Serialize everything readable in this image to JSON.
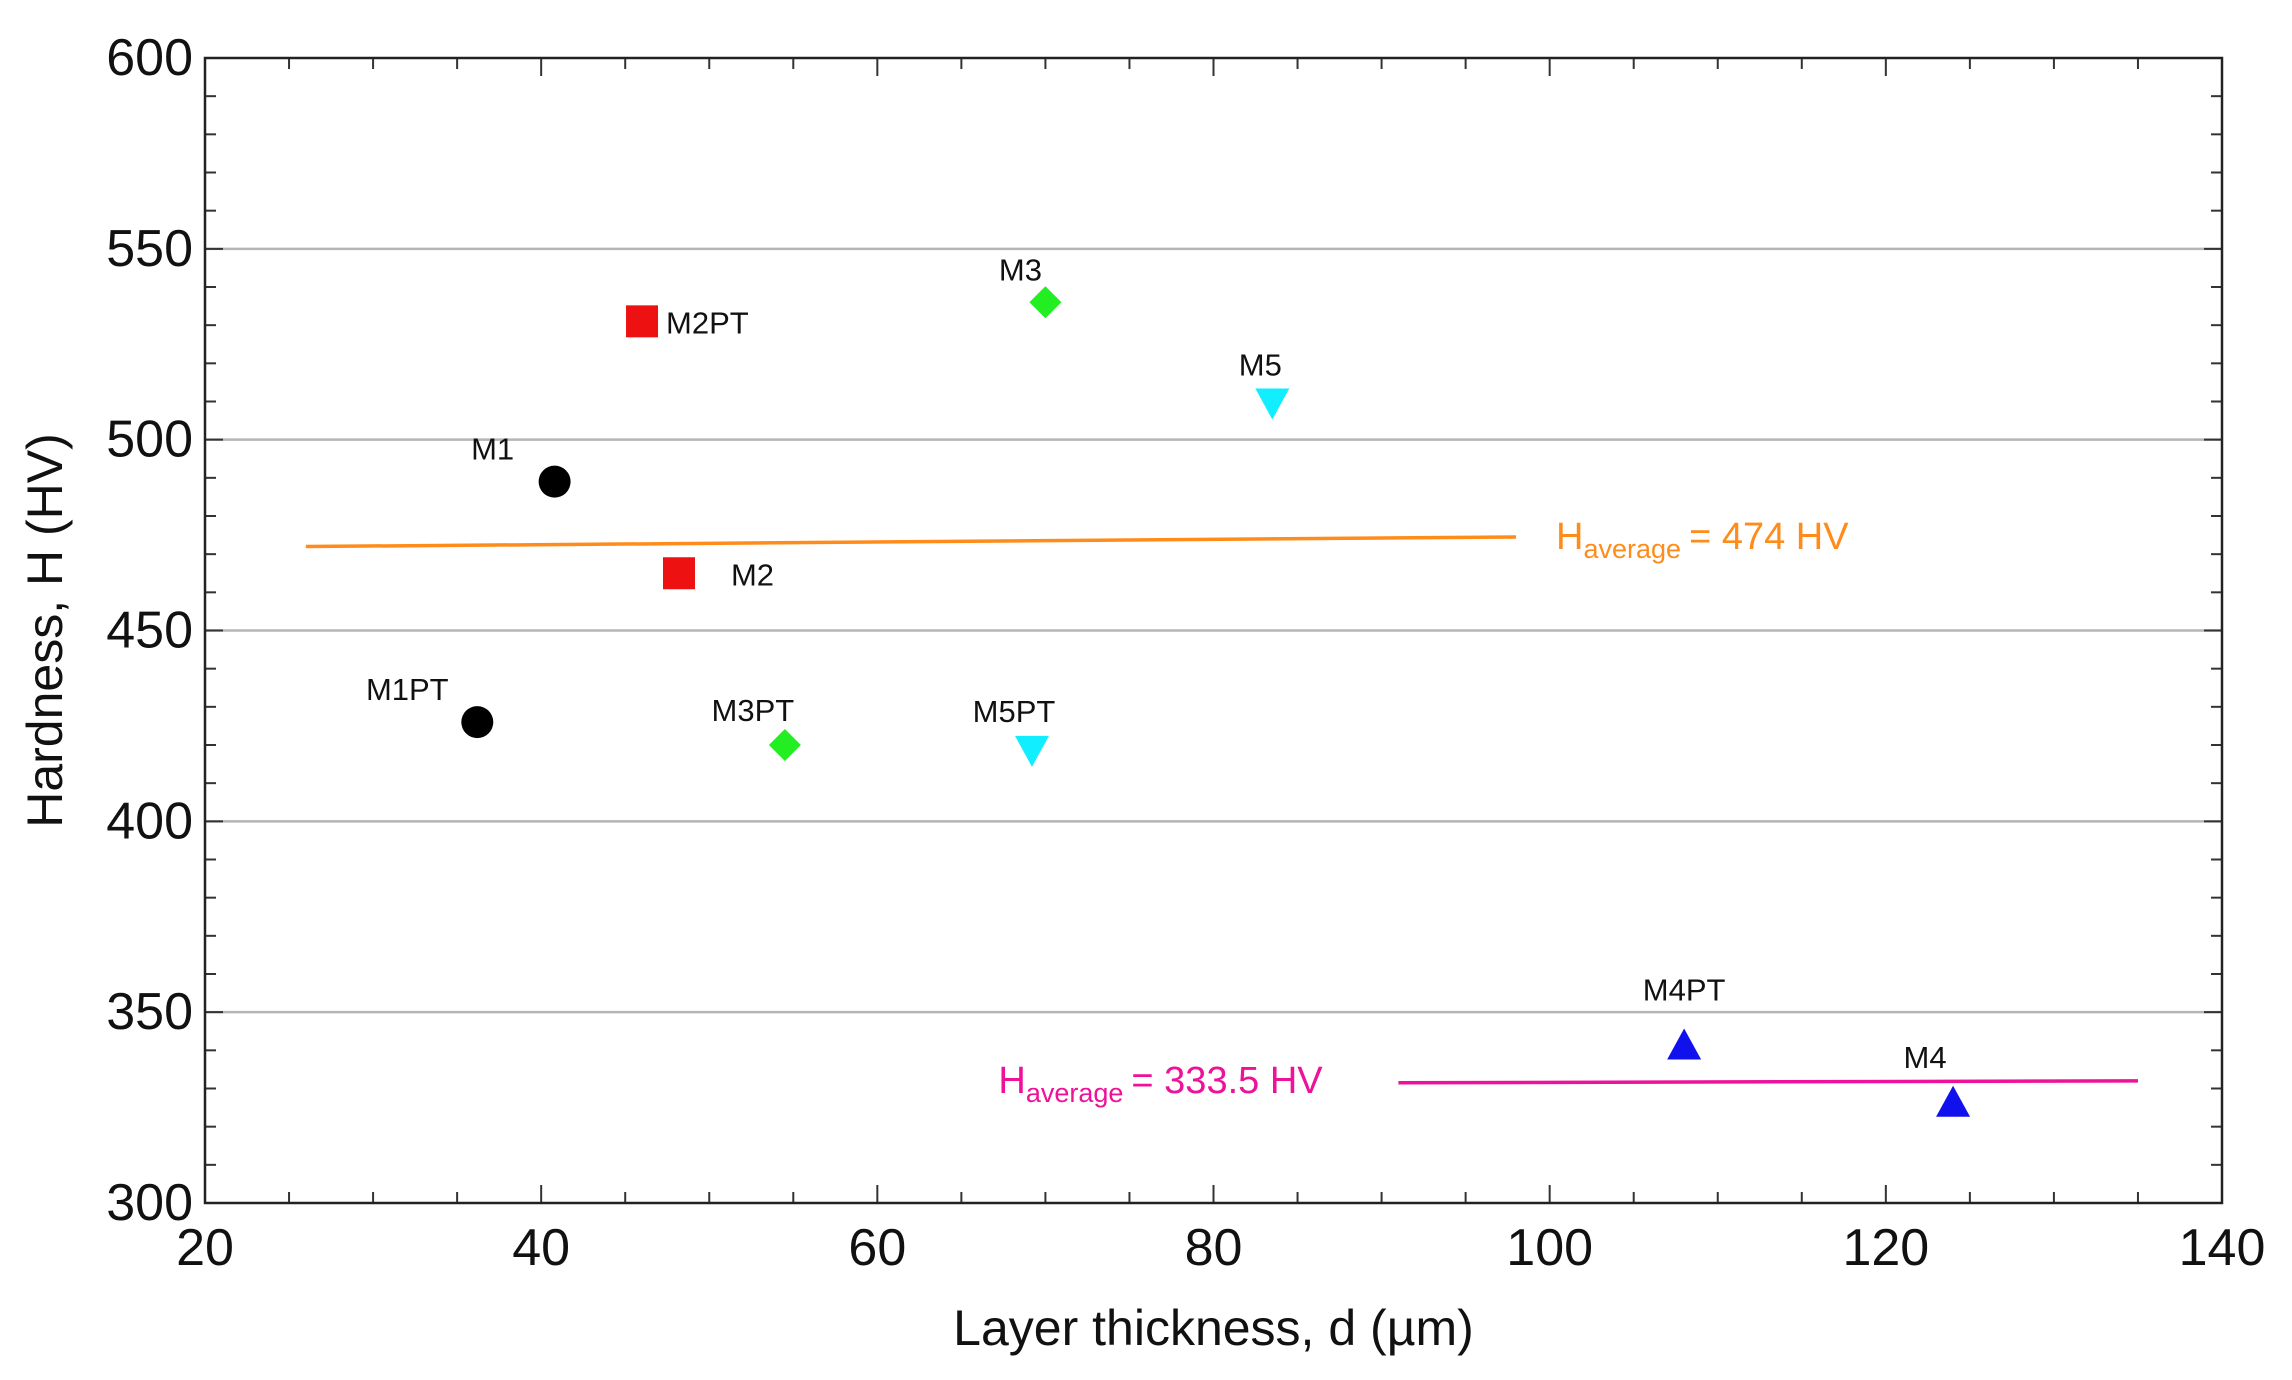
{
  "chart_data": {
    "type": "scatter",
    "title": "",
    "xlabel": "Layer thickness, d (µm)",
    "ylabel": "Hardness, H (HV)",
    "xlim": [
      20,
      140
    ],
    "ylim": [
      300,
      600
    ],
    "x_ticks": [
      20,
      40,
      60,
      80,
      100,
      120,
      140
    ],
    "y_ticks": [
      300,
      350,
      400,
      450,
      500,
      550,
      600
    ],
    "grid": "horizontal",
    "series": [
      {
        "name": "M1",
        "marker": "circle",
        "color": "#000000",
        "label": "M1",
        "x": 40.8,
        "y": 489
      },
      {
        "name": "M1PT",
        "marker": "circle",
        "color": "#000000",
        "label": "M1PT",
        "x": 36.2,
        "y": 426
      },
      {
        "name": "M2",
        "marker": "square",
        "color": "#ee1111",
        "label": "M2",
        "x": 48.2,
        "y": 465
      },
      {
        "name": "M2PT",
        "marker": "square",
        "color": "#ee1111",
        "label": "M2PT",
        "x": 46.0,
        "y": 531
      },
      {
        "name": "M3",
        "marker": "diamond",
        "color": "#22ee22",
        "label": "M3",
        "x": 70.0,
        "y": 536
      },
      {
        "name": "M3PT",
        "marker": "diamond",
        "color": "#22ee22",
        "label": "M3PT",
        "x": 54.5,
        "y": 420
      },
      {
        "name": "M4",
        "marker": "triangle-up",
        "color": "#1111ee",
        "label": "M4",
        "x": 124.0,
        "y": 326
      },
      {
        "name": "M4PT",
        "marker": "triangle-up",
        "color": "#1111ee",
        "label": "M4PT",
        "x": 108.0,
        "y": 341
      },
      {
        "name": "M5",
        "marker": "triangle-down",
        "color": "#11eeff",
        "label": "M5",
        "x": 83.5,
        "y": 510
      },
      {
        "name": "M5PT",
        "marker": "triangle-down",
        "color": "#11eeff",
        "label": "M5PT",
        "x": 69.2,
        "y": 419
      }
    ],
    "annotations": [
      {
        "name": "average-high",
        "color": "#ff8c1a",
        "x_start": 26,
        "x_end": 98,
        "y_start": 472,
        "y_end": 474.5,
        "label_main": "H",
        "label_sub": "average",
        "label_value": "= 474 HV"
      },
      {
        "name": "average-low",
        "color": "#ee1199",
        "x_start": 91,
        "x_end": 135,
        "y_start": 331.5,
        "y_end": 332,
        "label_main": "H",
        "label_sub": "average",
        "label_value": "= 333.5 HV"
      }
    ]
  }
}
